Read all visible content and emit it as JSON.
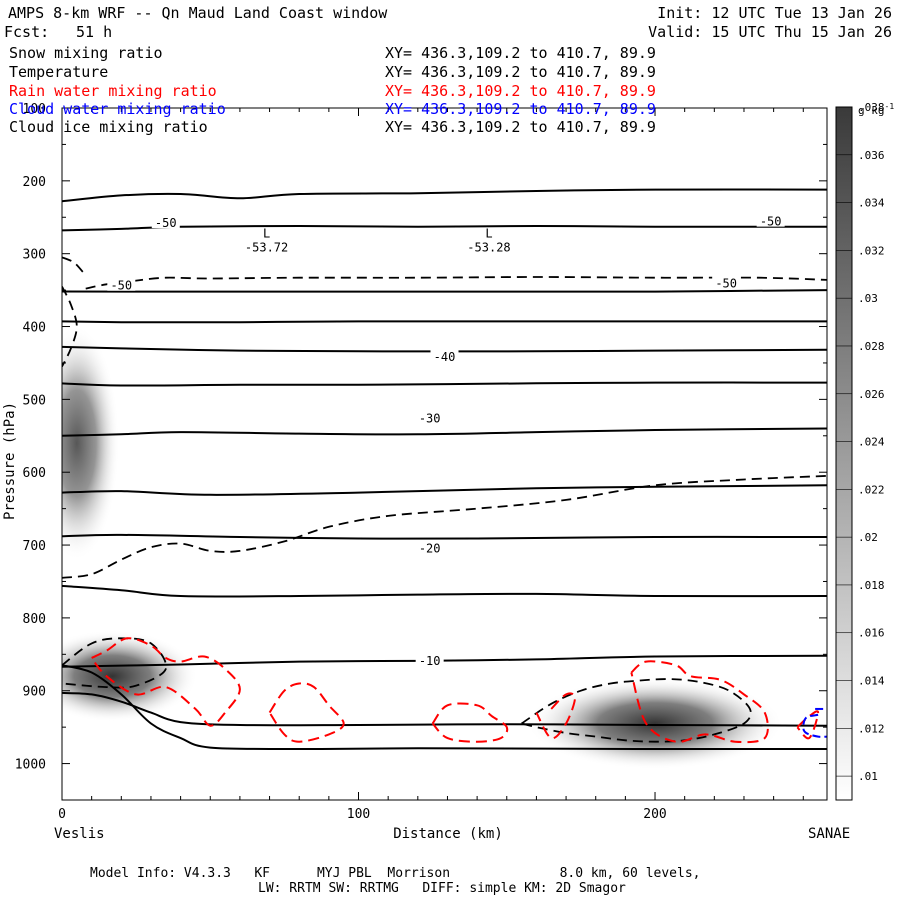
{
  "header": {
    "title": "AMPS 8-km WRF -- Qn Maud Land Coast window",
    "fcst_label": "Fcst:",
    "fcst_value": "51 h",
    "init": "Init: 12 UTC Tue 13 Jan 26",
    "valid": "Valid: 15 UTC Thu 15 Jan 26"
  },
  "legend": [
    {
      "name": "Snow mixing ratio",
      "xy": "XY= 436.3,109.2 to 410.7, 89.9",
      "color": "#000000"
    },
    {
      "name": "Temperature",
      "xy": "XY= 436.3,109.2 to 410.7, 89.9",
      "color": "#000000"
    },
    {
      "name": "Rain water mixing ratio",
      "xy": "XY= 436.3,109.2 to 410.7, 89.9",
      "color": "#ff0000"
    },
    {
      "name": "Cloud water mixing ratio",
      "xy": "XY= 436.3,109.2 to 410.7, 89.9",
      "color": "#0000ff"
    },
    {
      "name": "Cloud ice mixing ratio",
      "xy": "XY= 436.3,109.2 to 410.7, 89.9",
      "color": "#000000"
    }
  ],
  "footer": {
    "line1": "Model Info: V4.3.3   KF      MYJ PBL  Morrison              8.0 km, 60 levels,",
    "line2": "LW: RRTM SW: RRTMG   DIFF: simple KM: 2D Smagor"
  },
  "chart_data": {
    "type": "cross-section",
    "title": "AMPS 8-km WRF -- Qn Maud Land Coast window",
    "xlabel": "Distance (km)",
    "ylabel": "Pressure (hPa)",
    "xlim": [
      0,
      258
    ],
    "ylim": [
      1050,
      100
    ],
    "x_ticks": [
      0,
      100,
      200
    ],
    "y_ticks": [
      200,
      300,
      400,
      500,
      600,
      700,
      800,
      900,
      1000
    ],
    "y_tick_labels": [
      "200",
      "300",
      "400",
      "500",
      "600",
      "700",
      "800",
      "900",
      "1000"
    ],
    "top_tick_label": "100",
    "left_endpoint": "Veslis",
    "right_endpoint": "SANAE",
    "colorbar": {
      "units": "g kg",
      "units_exp": "-1",
      "ticks": [
        ".01",
        ".012",
        ".014",
        ".016",
        ".018",
        ".02",
        ".022",
        ".024",
        ".026",
        ".028",
        ".03",
        ".032",
        ".034",
        ".036",
        ".038"
      ],
      "levels": [
        0.009,
        0.038
      ],
      "color_low": "#ffffff",
      "color_high": "#3a3a3a"
    },
    "temperature_contour_labels": [
      {
        "text": "-50",
        "x": 35,
        "p": 258
      },
      {
        "text": "-50",
        "x": 239,
        "p": 256
      },
      {
        "text": "-50",
        "x": 20,
        "p": 344
      },
      {
        "text": "-50",
        "x": 224,
        "p": 341
      },
      {
        "text": "-40",
        "x": 129,
        "p": 442
      },
      {
        "text": "-30",
        "x": 124,
        "p": 526
      },
      {
        "text": "-20",
        "x": 124,
        "p": 705
      },
      {
        "text": "-10",
        "x": 124,
        "p": 859
      }
    ],
    "lows": [
      {
        "symbol": "L",
        "value": "-53.72",
        "x": 69,
        "p": 289
      },
      {
        "symbol": "L",
        "value": "-53.28",
        "x": 144,
        "p": 289
      }
    ],
    "temperature_lines": [
      {
        "x": [
          0,
          20,
          40,
          60,
          80,
          120,
          160,
          200,
          258
        ],
        "p": [
          228,
          220,
          218,
          224,
          218,
          217,
          214,
          212,
          212
        ]
      },
      {
        "x": [
          0,
          20,
          40,
          80,
          120,
          160,
          200,
          258
        ],
        "p": [
          268,
          266,
          263,
          262,
          263,
          262,
          263,
          263
        ]
      },
      {
        "x": [
          0,
          40,
          80,
          120,
          160,
          200,
          258
        ],
        "p": [
          352,
          352,
          352,
          352,
          352,
          352,
          350
        ]
      },
      {
        "x": [
          0,
          20,
          60,
          100,
          160,
          200,
          258
        ],
        "p": [
          393,
          394,
          394,
          393,
          393,
          393,
          393
        ]
      },
      {
        "x": [
          0,
          20,
          60,
          100,
          160,
          200,
          258
        ],
        "p": [
          428,
          430,
          433,
          434,
          434,
          433,
          432
        ]
      },
      {
        "x": [
          0,
          20,
          60,
          100,
          160,
          200,
          258
        ],
        "p": [
          478,
          481,
          480,
          480,
          478,
          477,
          477
        ]
      },
      {
        "x": [
          0,
          20,
          40,
          80,
          120,
          160,
          200,
          258
        ],
        "p": [
          550,
          548,
          545,
          547,
          548,
          545,
          542,
          540
        ]
      },
      {
        "x": [
          0,
          20,
          50,
          100,
          160,
          200,
          258
        ],
        "p": [
          628,
          626,
          631,
          628,
          622,
          620,
          618
        ]
      },
      {
        "x": [
          0,
          20,
          60,
          100,
          140,
          200,
          258
        ],
        "p": [
          688,
          686,
          689,
          691,
          691,
          689,
          689
        ]
      },
      {
        "x": [
          0,
          20,
          40,
          80,
          120,
          160,
          200,
          258
        ],
        "p": [
          756,
          762,
          770,
          770,
          768,
          767,
          770,
          770
        ]
      },
      {
        "x": [
          0,
          40,
          80,
          120,
          160,
          200,
          258
        ],
        "p": [
          867,
          864,
          860,
          859,
          857,
          853,
          852
        ]
      },
      {
        "x": [
          0,
          10,
          20,
          30,
          40,
          60,
          100,
          150,
          200,
          258
        ],
        "p": [
          903,
          905,
          915,
          930,
          943,
          947,
          947,
          946,
          947,
          948
        ]
      },
      {
        "x": [
          0,
          10,
          20,
          30,
          40,
          50,
          80,
          120,
          200,
          258
        ],
        "p": [
          865,
          875,
          905,
          945,
          965,
          978,
          980,
          979,
          980,
          980
        ]
      }
    ],
    "cloud_ice_dashed": [
      {
        "x": [
          8,
          15,
          25,
          35,
          50,
          80,
          120,
          160,
          200,
          235,
          258
        ],
        "p": [
          348,
          342,
          337,
          333,
          334,
          333,
          333,
          332,
          333,
          333,
          336
        ]
      },
      {
        "x": [
          0,
          3,
          5,
          3,
          0
        ],
        "p": [
          345,
          370,
          400,
          430,
          455
        ]
      },
      {
        "x": [
          0,
          4,
          7
        ],
        "p": [
          305,
          312,
          325
        ]
      },
      {
        "x": [
          0,
          10,
          20,
          30,
          40,
          50,
          60,
          75,
          90,
          110,
          140,
          170,
          200,
          230,
          258
        ],
        "p": [
          745,
          740,
          720,
          703,
          698,
          708,
          708,
          695,
          675,
          660,
          650,
          638,
          618,
          610,
          605
        ]
      },
      {
        "x": [
          0,
          10,
          20,
          30,
          35,
          25,
          15,
          0
        ],
        "p": [
          865,
          835,
          828,
          835,
          870,
          893,
          895,
          890
        ]
      },
      {
        "x": [
          155,
          165,
          175,
          185,
          195,
          205,
          215,
          225,
          232,
          230,
          220,
          210,
          200,
          190,
          180,
          170,
          160,
          155
        ],
        "p": [
          945,
          918,
          900,
          890,
          886,
          884,
          888,
          900,
          925,
          945,
          960,
          968,
          970,
          968,
          963,
          958,
          950,
          945
        ]
      }
    ],
    "rain_dashed": [
      {
        "x": [
          10,
          15,
          22,
          30,
          35,
          40,
          48,
          55,
          60,
          55,
          50,
          45,
          35,
          25,
          15,
          10
        ],
        "p": [
          855,
          845,
          828,
          838,
          855,
          860,
          853,
          870,
          898,
          930,
          948,
          925,
          895,
          905,
          880,
          855
        ]
      },
      {
        "x": [
          70,
          75,
          80,
          85,
          90,
          95,
          90,
          80,
          75,
          70
        ],
        "p": [
          930,
          900,
          890,
          895,
          920,
          945,
          960,
          970,
          960,
          930
        ]
      },
      {
        "x": [
          125,
          130,
          140,
          145,
          150,
          148,
          140,
          130,
          125
        ],
        "p": [
          945,
          920,
          920,
          935,
          950,
          965,
          970,
          965,
          945
        ]
      },
      {
        "x": [
          165,
          170,
          173,
          170,
          165,
          160
        ],
        "p": [
          925,
          905,
          910,
          945,
          965,
          930
        ]
      },
      {
        "x": [
          192,
          197,
          207,
          212,
          222,
          230,
          237,
          237,
          227,
          217,
          207,
          197,
          192
        ],
        "p": [
          875,
          860,
          865,
          880,
          885,
          905,
          930,
          965,
          970,
          960,
          970,
          945,
          875
        ]
      },
      {
        "x": [
          248,
          252,
          255,
          252,
          248
        ],
        "p": [
          950,
          935,
          930,
          965,
          950
        ]
      }
    ],
    "cloud_water": [
      {
        "x": [
          254,
          258
        ],
        "p": [
          925,
          925
        ]
      },
      {
        "x": [
          255,
          251,
          250,
          251,
          255,
          258
        ],
        "p": [
          933,
          937,
          950,
          958,
          963,
          963
        ]
      }
    ],
    "snow_blobs": [
      {
        "x": 5,
        "p": 560,
        "rx": 8,
        "rp": 90,
        "val": 0.03
      },
      {
        "x": 17,
        "p": 880,
        "rx": 16,
        "rp": 35,
        "val": 0.038
      },
      {
        "x": 200,
        "p": 945,
        "rx": 24,
        "rp": 35,
        "val": 0.036
      }
    ]
  }
}
